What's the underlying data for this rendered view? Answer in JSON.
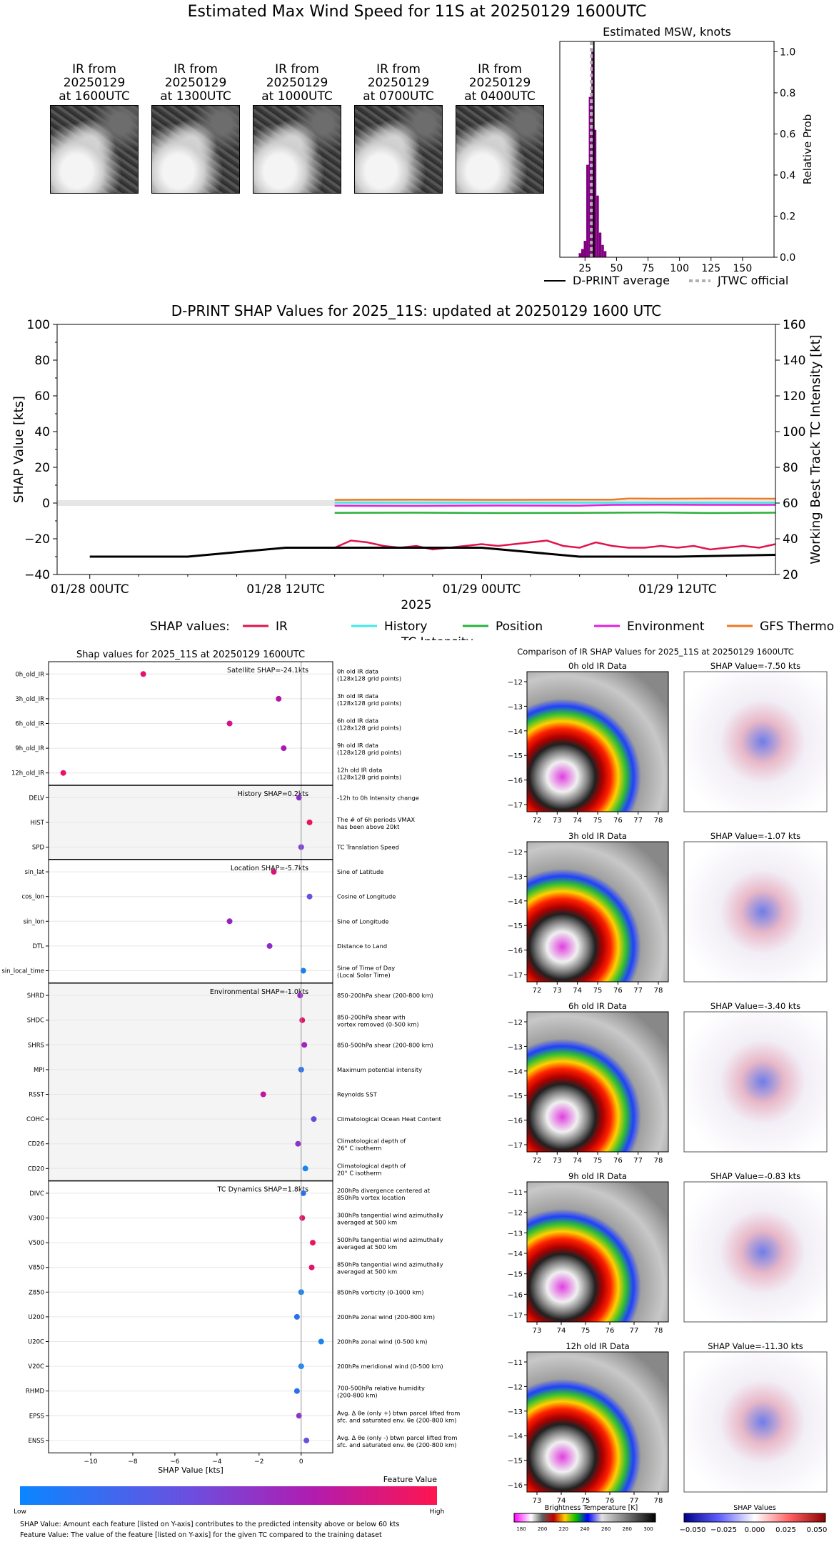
{
  "page": {
    "title": "Estimated Max Wind Speed for 11S at 20250129 1600UTC"
  },
  "ir_thumbnails": [
    {
      "line1": "IR from",
      "line2": "20250129",
      "line3": "at 1600UTC"
    },
    {
      "line1": "IR from",
      "line2": "20250129",
      "line3": "at 1300UTC"
    },
    {
      "line1": "IR from",
      "line2": "20250129",
      "line3": "at 1000UTC"
    },
    {
      "line1": "IR from",
      "line2": "20250129",
      "line3": "at 0700UTC"
    },
    {
      "line1": "IR from",
      "line2": "20250129",
      "line3": "at 0400UTC"
    }
  ],
  "chart_data": [
    {
      "type": "bar",
      "title": "Estimated MSW, knots",
      "ylabel": "Relative Prob",
      "xlim": [
        5,
        175
      ],
      "ylim": [
        0,
        1.05
      ],
      "xticks": [
        "25",
        "50",
        "75",
        "100",
        "125",
        "150"
      ],
      "yticks": [
        "0.0",
        "0.2",
        "0.4",
        "0.6",
        "0.8",
        "1.0"
      ],
      "bars": [
        {
          "x": 21,
          "value": 0.02
        },
        {
          "x": 23,
          "value": 0.04
        },
        {
          "x": 25,
          "value": 0.08
        },
        {
          "x": 27,
          "value": 0.45
        },
        {
          "x": 29,
          "value": 0.78
        },
        {
          "x": 31,
          "value": 1.0
        },
        {
          "x": 33,
          "value": 0.62
        },
        {
          "x": 35,
          "value": 0.3
        },
        {
          "x": 37,
          "value": 0.12
        },
        {
          "x": 39,
          "value": 0.06
        },
        {
          "x": 41,
          "value": 0.03
        }
      ],
      "dprint_average": 32,
      "jtwc_official": 30,
      "legend": [
        {
          "label": "D-PRINT average",
          "color": "#000000",
          "style": "solid"
        },
        {
          "label": "JTWC official",
          "color": "#b0b0b0",
          "style": "dotted"
        }
      ]
    },
    {
      "type": "line",
      "title": "D-PRINT SHAP Values for 2025_11S: updated at 20250129 1600 UTC",
      "xlabel": "2025",
      "ylabel": "SHAP Value [kts]",
      "y2label": "Working Best Track TC Intensity [kt]",
      "ylim": [
        -40,
        100
      ],
      "y2lim": [
        20,
        160
      ],
      "yticks": [
        "−40",
        "−20",
        "0",
        "20",
        "40",
        "60",
        "80",
        "100"
      ],
      "y2ticks": [
        "20",
        "40",
        "60",
        "80",
        "100",
        "120",
        "140",
        "160"
      ],
      "xlim_hours": [
        -2,
        42
      ],
      "xticks": [
        {
          "label": "01/28 00UTC",
          "h": 0
        },
        {
          "label": "01/28 12UTC",
          "h": 12
        },
        {
          "label": "01/29 00UTC",
          "h": 24
        },
        {
          "label": "01/29 12UTC",
          "h": 36
        }
      ],
      "legend_title": "SHAP values:",
      "series": [
        {
          "name": "IR",
          "color": "#e0144c",
          "x": [
            15,
            16,
            17,
            18,
            19,
            20,
            21,
            22,
            23,
            24,
            25,
            26,
            27,
            28,
            29,
            30,
            31,
            32,
            33,
            34,
            35,
            36,
            37,
            38,
            39,
            40,
            41,
            42
          ],
          "values": [
            -25,
            -21,
            -22,
            -24,
            -25,
            -24,
            -26,
            -25,
            -24,
            -23,
            -24,
            -23,
            -22,
            -21,
            -24,
            -25,
            -22,
            -24,
            -25,
            -25,
            -24,
            -25,
            -24,
            -26,
            -25,
            -24,
            -25,
            -23
          ]
        },
        {
          "name": "History",
          "color": "#40e8e8",
          "x": [
            15,
            42
          ],
          "values": [
            0.2,
            0.2
          ]
        },
        {
          "name": "Position",
          "color": "#2ab03a",
          "x": [
            15,
            20,
            25,
            30,
            35,
            38,
            42
          ],
          "values": [
            -5.5,
            -5.4,
            -5.6,
            -5.5,
            -5.3,
            -5.6,
            -5.4
          ]
        },
        {
          "name": "Environment",
          "color": "#e020e0",
          "x": [
            15,
            20,
            25,
            30,
            32,
            35,
            38,
            42
          ],
          "values": [
            -1.5,
            -1.6,
            -1.4,
            -1.5,
            -1.0,
            -0.9,
            -1.0,
            -1.0
          ]
        },
        {
          "name": "GFS Thermo",
          "color": "#f07820",
          "x": [
            15,
            20,
            25,
            30,
            32,
            33,
            35,
            38,
            42
          ],
          "values": [
            1.8,
            1.9,
            1.8,
            1.9,
            1.9,
            2.5,
            2.4,
            2.5,
            2.4
          ]
        },
        {
          "name": "TC Intensity",
          "color": "#000000",
          "axis": "right",
          "x": [
            0,
            6,
            12,
            18,
            24,
            30,
            36,
            42
          ],
          "values": [
            30,
            30,
            35,
            35,
            35,
            30,
            30,
            31
          ]
        }
      ]
    },
    {
      "type": "scatter",
      "title": "Shap values for 2025_11S at 20250129 1600UTC",
      "xlabel": "SHAP Value [kts]",
      "xlim": [
        -12,
        1.5
      ],
      "xticks": [
        "−10",
        "−8",
        "−6",
        "−4",
        "−2",
        "0"
      ],
      "colorbar_title": "Feature Value",
      "colorbar_low": "Low",
      "colorbar_high": "High",
      "groups": [
        {
          "label": "Satellite SHAP=-24.1kts",
          "shaded": false,
          "features": [
            {
              "name": "0h_old_IR",
              "desc1": "0h old IR data",
              "desc2": "(128x128 grid points)",
              "shap": -7.5,
              "color": "#e2136e"
            },
            {
              "name": "3h_old_IR",
              "desc1": "3h old IR data",
              "desc2": "(128x128 grid points)",
              "shap": -1.07,
              "color": "#b514a6"
            },
            {
              "name": "6h_old_IR",
              "desc1": "6h old IR data",
              "desc2": "(128x128 grid points)",
              "shap": -3.4,
              "color": "#d0148a"
            },
            {
              "name": "9h_old_IR",
              "desc1": "9h old IR data",
              "desc2": "(128x128 grid points)",
              "shap": -0.83,
              "color": "#a81ab4"
            },
            {
              "name": "12h_old_IR",
              "desc1": "12h old IR data",
              "desc2": "(128x128 grid points)",
              "shap": -11.3,
              "color": "#e8126a"
            }
          ]
        },
        {
          "label": "History SHAP=0.2kts",
          "shaded": true,
          "features": [
            {
              "name": "DELV",
              "desc1": "-12h to 0h Intensity change",
              "desc2": "",
              "shap": -0.1,
              "color": "#8a2bd0"
            },
            {
              "name": "HIST",
              "desc1": "The # of 6h periods VMAX",
              "desc2": "has been above 20kt",
              "shap": 0.4,
              "color": "#ea1462"
            },
            {
              "name": "SPD",
              "desc1": "TC Translation Speed",
              "desc2": "",
              "shap": 0.0,
              "color": "#7a40d8"
            }
          ]
        },
        {
          "label": "Location SHAP=-5.7kts",
          "shaded": false,
          "features": [
            {
              "name": "sin_lat",
              "desc1": "Sine of Latitude",
              "desc2": "",
              "shap": -1.3,
              "color": "#d81478"
            },
            {
              "name": "cos_lon",
              "desc1": "Cosine of Longitude",
              "desc2": "",
              "shap": 0.4,
              "color": "#6a50e0"
            },
            {
              "name": "sin_lon",
              "desc1": "Sine of Longitude",
              "desc2": "",
              "shap": -3.4,
              "color": "#9a20c0"
            },
            {
              "name": "DTL",
              "desc1": "Distance to Land",
              "desc2": "",
              "shap": -1.5,
              "color": "#8a2ec8"
            },
            {
              "name": "sin_local_time",
              "desc1": "Sine of Time of Day",
              "desc2": "(Local Solar Time)",
              "shap": 0.1,
              "color": "#1a80f0"
            }
          ]
        },
        {
          "label": "Environmental SHAP=-1.0kts",
          "shaded": true,
          "features": [
            {
              "name": "SHRD",
              "desc1": "850-200hPa shear (200-800 km)",
              "desc2": "",
              "shap": -0.05,
              "color": "#9a28c8"
            },
            {
              "name": "SHDC",
              "desc1": "850-200hPa shear with",
              "desc2": "vortex removed (0-500 km)",
              "shap": 0.05,
              "color": "#e21468"
            },
            {
              "name": "SHRS",
              "desc1": "850-500hPa shear (200-800 km)",
              "desc2": "",
              "shap": 0.15,
              "color": "#a024c0"
            },
            {
              "name": "MPI",
              "desc1": "Maximum potential intensity",
              "desc2": "",
              "shap": 0.0,
              "color": "#2a70ec"
            },
            {
              "name": "RSST",
              "desc1": "Reynolds SST",
              "desc2": "",
              "shap": -1.8,
              "color": "#c0189c"
            },
            {
              "name": "COHC",
              "desc1": "Climatological Ocean Heat Content",
              "desc2": "",
              "shap": 0.6,
              "color": "#6a4ad8"
            },
            {
              "name": "CD26",
              "desc1": "Climatological depth of",
              "desc2": "26° C isotherm",
              "shap": -0.15,
              "color": "#8a34cc"
            },
            {
              "name": "CD20",
              "desc1": "Climatological depth of",
              "desc2": "20° C isotherm",
              "shap": 0.2,
              "color": "#1a86f0"
            }
          ]
        },
        {
          "label": "TC Dynamics SHAP=1.8kts",
          "shaded": false,
          "features": [
            {
              "name": "DIVC",
              "desc1": "200hPa divergence centered at",
              "desc2": "850hPa vortex location",
              "shap": 0.1,
              "color": "#2a70ec"
            },
            {
              "name": "V300",
              "desc1": "300hPa tangential wind azimuthally",
              "desc2": "averaged at 500 km",
              "shap": 0.05,
              "color": "#e21468"
            },
            {
              "name": "V500",
              "desc1": "500hPa tangential wind azimuthally",
              "desc2": "averaged at 500 km",
              "shap": 0.55,
              "color": "#ea1460"
            },
            {
              "name": "V850",
              "desc1": "850hPa tangential wind azimuthally",
              "desc2": "averaged at 500 km",
              "shap": 0.5,
              "color": "#e2146a"
            },
            {
              "name": "Z850",
              "desc1": "850hPa vorticity (0-1000 km)",
              "desc2": "",
              "shap": 0.0,
              "color": "#1a80f0"
            },
            {
              "name": "U200",
              "desc1": "200hPa zonal wind (200-800 km)",
              "desc2": "",
              "shap": -0.2,
              "color": "#2a70ec"
            },
            {
              "name": "U20C",
              "desc1": "200hPa zonal wind (0-500 km)",
              "desc2": "",
              "shap": 0.95,
              "color": "#1a84f2"
            },
            {
              "name": "V20C",
              "desc1": "200hPa meridional wind (0-500 km)",
              "desc2": "",
              "shap": 0.0,
              "color": "#1a84f2"
            },
            {
              "name": "RHMD",
              "desc1": "700-500hPa relative humidity",
              "desc2": "(200-800 km)",
              "shap": -0.2,
              "color": "#2a70ec"
            },
            {
              "name": "EPSS",
              "desc1": "Avg. Δ θe (only +) btwn parcel lifted from",
              "desc2": "sfc. and saturated env. θe (200-800 km)",
              "shap": -0.1,
              "color": "#8a34cc"
            },
            {
              "name": "ENSS",
              "desc1": "Avg. Δ θe (only -) btwn parcel lifted from",
              "desc2": "sfc. and saturated env. θe (200-800 km)",
              "shap": 0.25,
              "color": "#6a50e0"
            }
          ]
        }
      ]
    }
  ],
  "ir_comparison": {
    "title": "Comparison of IR SHAP Values for 2025_11S at 20250129 1600UTC",
    "rows": [
      {
        "ir_title": "0h old IR Data",
        "shap_title": "SHAP Value=-7.50 kts",
        "yticks": [
          "−12",
          "−13",
          "−14",
          "−15",
          "−16",
          "−17"
        ],
        "xticks": [
          "72",
          "73",
          "74",
          "75",
          "76",
          "77",
          "78"
        ]
      },
      {
        "ir_title": "3h old IR Data",
        "shap_title": "SHAP Value=-1.07 kts",
        "yticks": [
          "−12",
          "−13",
          "−14",
          "−15",
          "−16",
          "−17"
        ],
        "xticks": [
          "72",
          "73",
          "74",
          "75",
          "76",
          "77",
          "78"
        ]
      },
      {
        "ir_title": "6h old IR Data",
        "shap_title": "SHAP Value=-3.40 kts",
        "yticks": [
          "−12",
          "−13",
          "−14",
          "−15",
          "−16",
          "−17"
        ],
        "xticks": [
          "72",
          "73",
          "74",
          "75",
          "76",
          "77",
          "78"
        ]
      },
      {
        "ir_title": "9h old IR Data",
        "shap_title": "SHAP Value=-0.83 kts",
        "yticks": [
          "−11",
          "−12",
          "−13",
          "−14",
          "−15",
          "−16",
          "−17"
        ],
        "xticks": [
          "73",
          "74",
          "75",
          "76",
          "77",
          "78"
        ]
      },
      {
        "ir_title": "12h old IR Data",
        "shap_title": "SHAP Value=-11.30 kts",
        "yticks": [
          "−11",
          "−12",
          "−13",
          "−14",
          "−15",
          "−16"
        ],
        "xticks": [
          "73",
          "74",
          "75",
          "76",
          "77",
          "78"
        ]
      }
    ],
    "bt_colorbar": {
      "title": "Brightness Temperature [K]",
      "ticks": [
        "180",
        "200",
        "220",
        "240",
        "260",
        "280",
        "300"
      ]
    },
    "shap_colorbar": {
      "title": "SHAP Values",
      "ticks": [
        "−0.050",
        "−0.025",
        "0.000",
        "0.025",
        "0.050"
      ]
    }
  },
  "footnotes": {
    "line1": "SHAP Value: Amount each feature [listed on Y-axis] contributes to the predicted intensity above or below 60 kts",
    "line2": "Feature Value: The value of the feature [listed on Y-axis] for the given TC compared to the training dataset"
  }
}
